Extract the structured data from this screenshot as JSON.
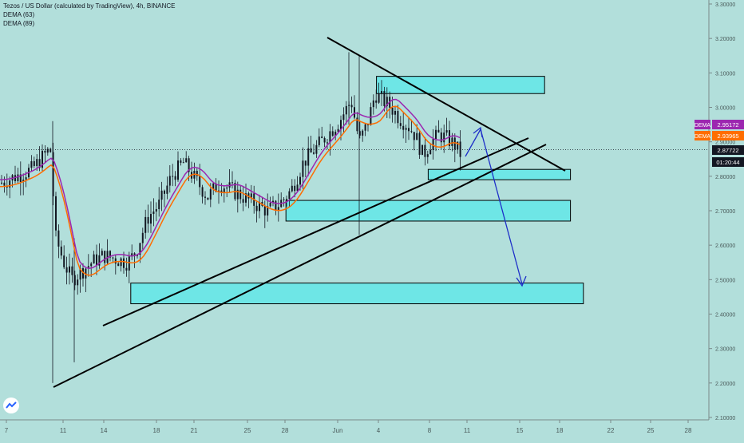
{
  "legend": {
    "symbol": "Tezos / US Dollar (calculated by TradingView), 4h, BINANCE",
    "indicators": [
      "DEMA (63)",
      "DEMA (89)"
    ]
  },
  "chart_data": {
    "type": "candlestick",
    "y_axis": {
      "ticks": [
        "3.30000",
        "3.20000",
        "3.10000",
        "3.00000",
        "2.90000",
        "2.80000",
        "2.70000",
        "2.60000",
        "2.50000",
        "2.40000",
        "2.30000",
        "2.20000",
        "2.10000"
      ],
      "range": [
        2.1,
        3.3
      ]
    },
    "x_axis": {
      "ticks": [
        "7",
        "11",
        "14",
        "18",
        "21",
        "25",
        "28",
        "Jun",
        "4",
        "8",
        "11",
        "15",
        "18",
        "22",
        "25",
        "28"
      ]
    },
    "price_labels": [
      {
        "name": "DEMA",
        "value": "2.95172",
        "color": "#9c27b0"
      },
      {
        "name": "DEMA",
        "value": "2.93965",
        "color": "#ff6d00"
      },
      {
        "name": "",
        "value": "2.87722",
        "color": "#131722"
      },
      {
        "name": "",
        "value": "01:20:44",
        "color": "#131722"
      }
    ],
    "last_price": 2.87722,
    "zones": [
      {
        "x_from": "Jun 4",
        "x_to": "Jun 17",
        "y_from": 3.04,
        "y_to": 3.09
      },
      {
        "x_from": "Jun 8",
        "x_to": "Jun 19",
        "y_from": 2.79,
        "y_to": 2.82
      },
      {
        "x_from": "May 28",
        "x_to": "Jun 19",
        "y_from": 2.67,
        "y_to": 2.73
      },
      {
        "x_from": "May 16",
        "x_to": "Jun 20",
        "y_from": 2.43,
        "y_to": 2.49
      }
    ],
    "indicator_colors": {
      "dema_63": "#ff6d00",
      "dema_89": "#9c27b0"
    },
    "annotation_colors": {
      "trendline": "#000000",
      "arrow": "#1e2fc8",
      "zone_fill": "#6ee6e6"
    }
  }
}
